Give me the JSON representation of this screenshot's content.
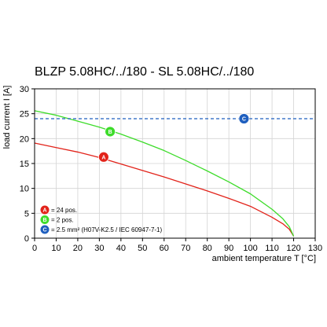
{
  "chart_data": {
    "type": "line",
    "title": "BLZP 5.08HC/../180 - SL 5.08HC/../180",
    "xlabel": "ambient temperature T [°C]",
    "ylabel": "load current I [A]",
    "xlim": [
      0,
      130
    ],
    "ylim": [
      0,
      30
    ],
    "xticks": [
      0,
      10,
      20,
      30,
      40,
      50,
      60,
      70,
      80,
      90,
      100,
      110,
      120,
      130
    ],
    "yticks": [
      0,
      5,
      10,
      15,
      20,
      25,
      30
    ],
    "grid": true,
    "legend_position": "bottom-left",
    "series": [
      {
        "marker": "A",
        "color": "#e2231a",
        "x": [
          0,
          10,
          20,
          30,
          40,
          50,
          60,
          70,
          80,
          90,
          100,
          110,
          115,
          118,
          120
        ],
        "y": [
          19.1,
          18.2,
          17.3,
          16.2,
          14.9,
          13.6,
          12.3,
          10.9,
          9.5,
          8.0,
          6.4,
          4.2,
          2.9,
          1.8,
          0.4
        ]
      },
      {
        "marker": "B",
        "color": "#3ddc2a",
        "x": [
          0,
          10,
          20,
          30,
          40,
          50,
          60,
          70,
          80,
          90,
          100,
          110,
          115,
          118,
          120
        ],
        "y": [
          25.6,
          24.7,
          23.5,
          22.3,
          20.9,
          19.3,
          17.6,
          15.6,
          13.5,
          11.3,
          8.9,
          5.8,
          3.9,
          2.3,
          0.4
        ]
      },
      {
        "marker": "C",
        "color": "#1f5fbf",
        "dashed": true,
        "x": [
          0,
          130
        ],
        "y": [
          24,
          24
        ]
      }
    ],
    "series_markers": [
      {
        "letter": "A",
        "color": "#e2231a",
        "x": 32,
        "y": 16.3
      },
      {
        "letter": "B",
        "color": "#3ddc2a",
        "x": 35,
        "y": 21.4
      },
      {
        "letter": "C",
        "color": "#1f5fbf",
        "x": 97,
        "y": 24
      }
    ],
    "legend": [
      {
        "letter": "A",
        "color": "#e2231a",
        "text": "= 24 pos."
      },
      {
        "letter": "B",
        "color": "#3ddc2a",
        "text": "= 2 pos."
      },
      {
        "letter": "C",
        "color": "#1f5fbf",
        "text": "= 2.5 mm² (H07V-K2.5 / IEC 60947-7-1)"
      }
    ],
    "colors": {
      "grid": "#d4d4d4",
      "axis": "#000000"
    }
  }
}
